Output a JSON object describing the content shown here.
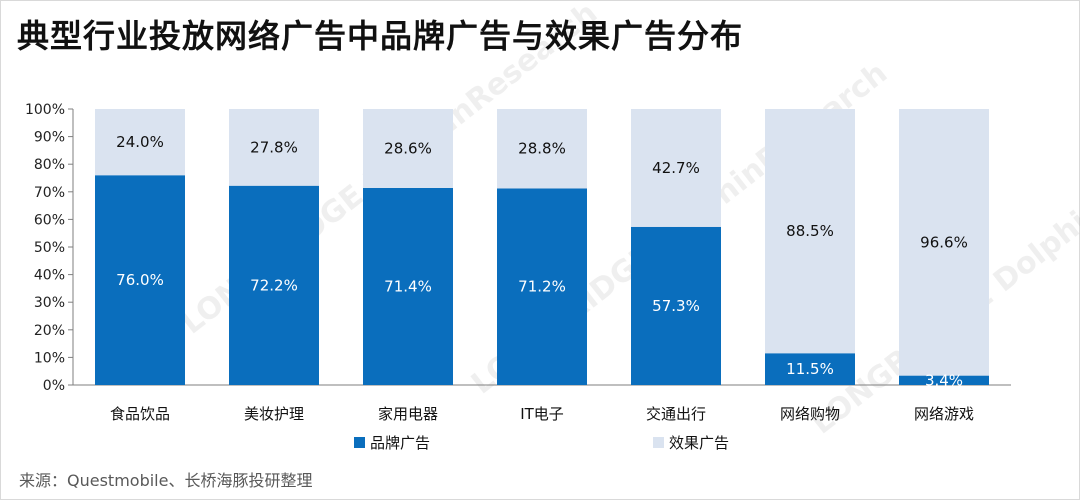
{
  "page": {
    "title": "典型行业投放网络广告中品牌广告与效果广告分布",
    "source": "来源：Questmobile、长桥海豚投研整理"
  },
  "colors": {
    "brand": "#0a6ebd",
    "effect": "#dae3f0",
    "axis": "#7f7f7f",
    "brand_label": "#ffffff",
    "effect_label": "#111111"
  },
  "chart_data": {
    "type": "bar",
    "stacked": true,
    "title": "典型行业投放网络广告中品牌广告与效果广告分布",
    "xlabel": "",
    "ylabel": "",
    "ylim": [
      0,
      100
    ],
    "yticks": [
      "0%",
      "10%",
      "20%",
      "30%",
      "40%",
      "50%",
      "60%",
      "70%",
      "80%",
      "90%",
      "100%"
    ],
    "categories": [
      "食品饮品",
      "美妆护理",
      "家用电器",
      "IT电子",
      "交通出行",
      "网络购物",
      "网络游戏"
    ],
    "series": [
      {
        "name": "品牌广告",
        "values": [
          76.0,
          72.2,
          71.4,
          71.2,
          57.3,
          11.5,
          3.4
        ],
        "labels": [
          "76.0%",
          "72.2%",
          "71.4%",
          "71.2%",
          "57.3%",
          "11.5%",
          "3.4%"
        ]
      },
      {
        "name": "效果广告",
        "values": [
          24.0,
          27.8,
          28.6,
          28.8,
          42.7,
          88.5,
          96.6
        ],
        "labels": [
          "24.0%",
          "27.8%",
          "28.6%",
          "28.8%",
          "42.7%",
          "88.5%",
          "96.6%"
        ]
      }
    ],
    "legend": "bottom",
    "grid": false
  }
}
